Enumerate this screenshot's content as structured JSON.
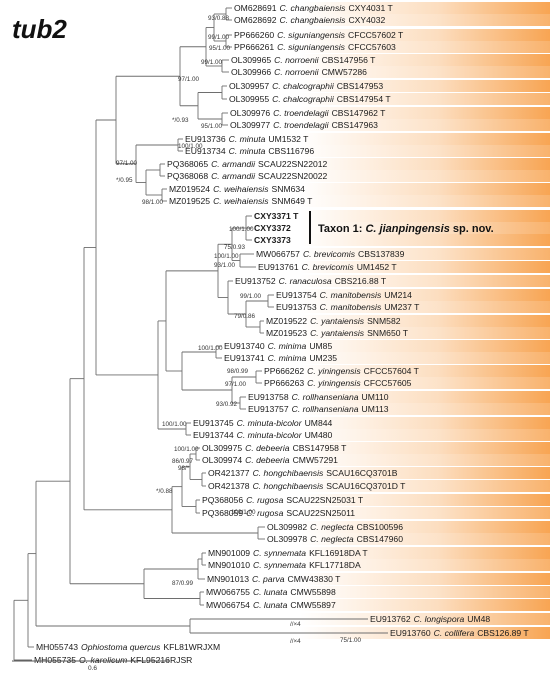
{
  "title": "tub2",
  "colors": {
    "band": "#f7a04a",
    "branch": "#6e6e6e"
  },
  "taxon_note": {
    "prefix": "Taxon 1: ",
    "species": "C. jianpingensis",
    "suffix": " sp. nov."
  },
  "scale_label": "0.6",
  "break_marks": [
    "//×4",
    "//×4"
  ],
  "tips": [
    {
      "acc": "OM628691",
      "sp": "C. changbaiensis",
      "str": "CXY4031 T"
    },
    {
      "acc": "OM628692",
      "sp": "C. changbaiensis",
      "str": "CXY4032"
    },
    {
      "acc": "PP666260",
      "sp": "C. siguniangensis",
      "str": "CFCC57602 T"
    },
    {
      "acc": "PP666261",
      "sp": "C. siguniangensis",
      "str": "CFCC57603"
    },
    {
      "acc": "OL309965",
      "sp": "C. norroenii",
      "str": "CBS147956 T"
    },
    {
      "acc": "OL309966",
      "sp": "C. norroenii",
      "str": "CMW57286"
    },
    {
      "acc": "OL309957",
      "sp": "C. chalcographii",
      "str": "CBS147953"
    },
    {
      "acc": "OL309955",
      "sp": "C. chalcographii",
      "str": "CBS147954 T"
    },
    {
      "acc": "OL309976",
      "sp": "C. troendelagii",
      "str": "CBS147962 T"
    },
    {
      "acc": "OL309977",
      "sp": "C. troendelagii",
      "str": "CBS147963"
    },
    {
      "acc": "EU913736",
      "sp": "C. minuta",
      "str": "UM1532 T"
    },
    {
      "acc": "EU913734",
      "sp": "C. minuta",
      "str": "CBS116796"
    },
    {
      "acc": "PQ368065",
      "sp": "C. armandii",
      "str": "SCAU22SN22012"
    },
    {
      "acc": "PQ368068",
      "sp": "C. armandii",
      "str": "SCAU22SN20022"
    },
    {
      "acc": "MZ019524",
      "sp": "C. weihaiensis",
      "str": "SNM634"
    },
    {
      "acc": "MZ019525",
      "sp": "C. weihaiensis",
      "str": "SNM649 T"
    },
    {
      "acc": "CXY3371 T",
      "sp": "",
      "str": "",
      "bold": true
    },
    {
      "acc": "CXY3372",
      "sp": "",
      "str": "",
      "bold": true
    },
    {
      "acc": "CXY3373",
      "sp": "",
      "str": "",
      "bold": true
    },
    {
      "acc": "MW066757",
      "sp": "C. brevicomis",
      "str": "CBS137839"
    },
    {
      "acc": "EU913761",
      "sp": "C. brevicomis",
      "str": "UM1452 T"
    },
    {
      "acc": "EU913752",
      "sp": "C. ranaculosa",
      "str": "CBS216.88 T"
    },
    {
      "acc": "EU913754",
      "sp": "C. manitobensis",
      "str": "UM214"
    },
    {
      "acc": "EU913753",
      "sp": "C. manitobensis",
      "str": "UM237 T"
    },
    {
      "acc": "MZ019522",
      "sp": "C. yantaiensis",
      "str": "SNM582"
    },
    {
      "acc": "MZ019523",
      "sp": "C. yantaiensis",
      "str": "SNM650 T"
    },
    {
      "acc": "EU913740",
      "sp": "C. minima",
      "str": "UM85"
    },
    {
      "acc": "EU913741",
      "sp": "C. minima",
      "str": "UM235"
    },
    {
      "acc": "PP666262",
      "sp": "C. yiningensis",
      "str": "CFCC57604 T"
    },
    {
      "acc": "PP666263",
      "sp": "C. yiningensis",
      "str": "CFCC57605"
    },
    {
      "acc": "EU913758",
      "sp": "C. rollhanseniana",
      "str": "UM110"
    },
    {
      "acc": "EU913757",
      "sp": "C. rollhanseniana",
      "str": "UM113"
    },
    {
      "acc": "EU913745",
      "sp": "C. minuta-bicolor",
      "str": "UM844"
    },
    {
      "acc": "EU913744",
      "sp": "C. minuta-bicolor",
      "str": "UM480"
    },
    {
      "acc": "OL309975",
      "sp": "C. debeeria",
      "str": "CBS147958 T"
    },
    {
      "acc": "OL309974",
      "sp": "C. debeeria",
      "str": "CMW57291"
    },
    {
      "acc": "OR421377",
      "sp": "C. hongchibaensis",
      "str": "SCAU16CQ3701B"
    },
    {
      "acc": "OR421378",
      "sp": "C. hongchibaensis",
      "str": "SCAU16CQ3701D T"
    },
    {
      "acc": "PQ368056",
      "sp": "C. rugosa",
      "str": "SCAU22SN25031 T"
    },
    {
      "acc": "PQ368059",
      "sp": "C. rugosa",
      "str": "SCAU22SN25011"
    },
    {
      "acc": "OL309982",
      "sp": "C. neglecta",
      "str": "CBS100596"
    },
    {
      "acc": "OL309978",
      "sp": "C. neglecta",
      "str": "CBS147960"
    },
    {
      "acc": "MN901009",
      "sp": "C. synnemata",
      "str": "KFL16918DA T"
    },
    {
      "acc": "MN901010",
      "sp": "C. synnemata",
      "str": "KFL17718DA"
    },
    {
      "acc": "MN901013",
      "sp": "C. parva",
      "str": "CMW43830 T"
    },
    {
      "acc": "MW066755",
      "sp": "C. lunata",
      "str": "CMW55898"
    },
    {
      "acc": "MW066754",
      "sp": "C. lunata",
      "str": "CMW55897"
    },
    {
      "acc": "EU913762",
      "sp": "C. longispora",
      "str": "UM48"
    },
    {
      "acc": "EU913760",
      "sp": "C. collifera",
      "str": "CBS126.89 T"
    },
    {
      "acc": "MH055743",
      "sp": "Ophiostoma quercus",
      "str": "KFL81WRJXM"
    },
    {
      "acc": "MH055735",
      "sp": "O. karelicum",
      "str": "KFL95216RJSR"
    }
  ],
  "supports": [
    "93/0.88",
    "99/1.00",
    "95/1.00",
    "99/1.00",
    "97/1.00",
    "*/0.93",
    "95/1.00",
    "100/1.00",
    "97/1.00",
    "*/0.95",
    "98/1.00",
    "100/1.00",
    "75/0.93",
    "100/1.00",
    "93/1.00",
    "99/1.00",
    "79/0.86",
    "100/1.00",
    "98/0.99",
    "97/1.00",
    "93/0.92",
    "100/1.00",
    "100/1.00",
    "86/0.97",
    "98/*",
    "*/0.88",
    "100/1.00",
    "87/0.99",
    "75/1.00"
  ]
}
